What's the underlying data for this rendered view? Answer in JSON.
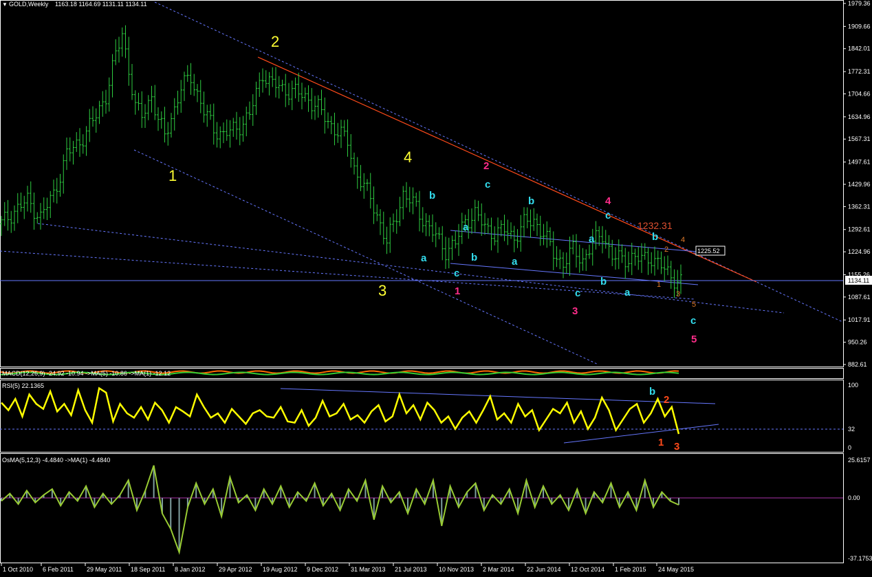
{
  "header": {
    "symbol": "GOLD,Weekly",
    "ohlc": "1163.18 1164.69 1131.11 1134.11"
  },
  "price_panel": {
    "y_ticks": [
      "1979.36",
      "1909.66",
      "1842.01",
      "1772.31",
      "1704.66",
      "1634.96",
      "1567.31",
      "1497.61",
      "1429.96",
      "1362.31",
      "1292.61",
      "1224.96",
      "1155.26",
      "1087.61",
      "1017.91",
      "950.26",
      "882.61"
    ],
    "current_price": "1134.11",
    "line_price": "1225.52",
    "annotation": "1232.31"
  },
  "macd_panel": {
    "label": "MACD(12,26,9) -24.92 -10.94 ->MA(5) -10.86 ->MA(1) -12.12"
  },
  "rsi_panel": {
    "label": "RSI(5) 22.1365",
    "y_ticks": [
      "100",
      "32",
      "0"
    ]
  },
  "osma_panel": {
    "label": "OsMA(5,12,3) -4.4840   ->MA(1) -4.4840",
    "y_ticks": [
      "25.6157",
      "0.00",
      "-37.1753"
    ]
  },
  "x_axis": {
    "labels": [
      "1 Oct 2010",
      "6 Feb 2011",
      "29 May 2011",
      "18 Sep 2011",
      "8 Jan 2012",
      "29 Apr 2012",
      "19 Aug 2012",
      "9 Dec 2012",
      "31 Mar 2013",
      "21 Jul 2013",
      "10 Nov 2013",
      "2 Mar 2014",
      "22 Jun 2014",
      "12 Oct 2014",
      "1 Feb 2015",
      "24 May 2015"
    ]
  },
  "wave_labels": {
    "major": [
      "1",
      "2",
      "3",
      "4"
    ],
    "intermediate": [
      "1",
      "2",
      "3",
      "4",
      "5"
    ],
    "minor": [
      "a",
      "b",
      "c",
      "a",
      "b",
      "c",
      "a",
      "b",
      "c",
      "a",
      "b",
      "c",
      "a",
      "b",
      "c",
      "c"
    ],
    "sub": [
      "1",
      "2",
      "3",
      "4",
      "5"
    ],
    "rsi": [
      "b",
      "2",
      "1",
      "3"
    ]
  },
  "colors": {
    "candles": "#2ecc40",
    "major": "#ffff33",
    "intermediate": "#ff2d8a",
    "minor": "#33ddee",
    "sub": "#e07a2a",
    "trend": "#ff4a1a",
    "channel": "#6677ff",
    "rsi": "#ffff00",
    "osma": "#99cc33",
    "macd_a": "#ff6a00",
    "macd_b": "#33cc33"
  },
  "chart_data": [
    {
      "type": "candlestick",
      "title": "GOLD,Weekly",
      "x_labels": [
        "1 Oct 2010",
        "6 Feb 2011",
        "29 May 2011",
        "18 Sep 2011",
        "8 Jan 2012",
        "29 Apr 2012",
        "19 Aug 2012",
        "9 Dec 2012",
        "31 Mar 2013",
        "21 Jul 2013",
        "10 Nov 2013",
        "2 Mar 2014",
        "22 Jun 2014",
        "12 Oct 2014",
        "1 Feb 2015",
        "24 May 2015"
      ],
      "ylim": [
        882.61,
        1979.36
      ],
      "close_path": [
        [
          0,
          1310
        ],
        [
          4,
          1350
        ],
        [
          8,
          1380
        ],
        [
          12,
          1330
        ],
        [
          16,
          1400
        ],
        [
          20,
          1520
        ],
        [
          24,
          1560
        ],
        [
          28,
          1620
        ],
        [
          32,
          1700
        ],
        [
          35,
          1820
        ],
        [
          37,
          1890
        ],
        [
          39,
          1780
        ],
        [
          41,
          1660
        ],
        [
          43,
          1640
        ],
        [
          46,
          1700
        ],
        [
          48,
          1620
        ],
        [
          50,
          1580
        ],
        [
          53,
          1660
        ],
        [
          55,
          1720
        ],
        [
          58,
          1760
        ],
        [
          62,
          1650
        ],
        [
          65,
          1600
        ],
        [
          68,
          1580
        ],
        [
          72,
          1600
        ],
        [
          76,
          1640
        ],
        [
          80,
          1770
        ],
        [
          82,
          1740
        ],
        [
          86,
          1720
        ],
        [
          90,
          1710
        ],
        [
          94,
          1690
        ],
        [
          97,
          1660
        ],
        [
          100,
          1620
        ],
        [
          103,
          1590
        ],
        [
          106,
          1560
        ],
        [
          108,
          1480
        ],
        [
          111,
          1420
        ],
        [
          113,
          1390
        ],
        [
          116,
          1310
        ],
        [
          118,
          1250
        ],
        [
          120,
          1310
        ],
        [
          123,
          1400
        ],
        [
          125,
          1380
        ],
        [
          127,
          1360
        ],
        [
          130,
          1310
        ],
        [
          133,
          1270
        ],
        [
          136,
          1230
        ],
        [
          139,
          1250
        ],
        [
          142,
          1320
        ],
        [
          145,
          1340
        ],
        [
          148,
          1300
        ],
        [
          151,
          1280
        ],
        [
          154,
          1290
        ],
        [
          157,
          1270
        ],
        [
          160,
          1310
        ],
        [
          163,
          1320
        ],
        [
          166,
          1280
        ],
        [
          169,
          1220
        ],
        [
          172,
          1190
        ],
        [
          175,
          1230
        ],
        [
          178,
          1200
        ],
        [
          181,
          1250
        ],
        [
          184,
          1280
        ],
        [
          187,
          1210
        ],
        [
          190,
          1200
        ],
        [
          193,
          1210
        ],
        [
          196,
          1200
        ],
        [
          199,
          1210
        ],
        [
          202,
          1180
        ],
        [
          205,
          1150
        ],
        [
          208,
          1134
        ]
      ],
      "wave_counts": {
        "primary": [
          "1",
          "2",
          "3",
          "4"
        ],
        "intermediate": [
          "1",
          "2",
          "3",
          "4",
          "5"
        ],
        "minor": [
          "a",
          "b",
          "c"
        ],
        "sub": [
          "1",
          "2",
          "3",
          "4",
          "5"
        ]
      },
      "current_price": 1134.11,
      "line_price": 1225.52,
      "marked_level": 1232.31
    },
    {
      "type": "line",
      "title": "RSI(5) 22.1365",
      "ylim": [
        0,
        100
      ],
      "levels": [
        32
      ],
      "values": [
        72,
        60,
        78,
        50,
        85,
        70,
        62,
        90,
        58,
        70,
        52,
        92,
        60,
        40,
        95,
        88,
        42,
        70,
        55,
        48,
        65,
        45,
        72,
        60,
        40,
        65,
        58,
        50,
        85,
        65,
        48,
        55,
        40,
        62,
        50,
        38,
        55,
        60,
        50,
        48,
        65,
        42,
        40,
        60,
        35,
        48,
        75,
        50,
        55,
        70,
        45,
        52,
        40,
        58,
        68,
        42,
        50,
        85,
        55,
        68,
        45,
        72,
        60,
        40,
        50,
        30,
        48,
        58,
        40,
        60,
        82,
        45,
        55,
        40,
        70,
        50,
        60,
        28,
        45,
        62,
        55,
        72,
        40,
        58,
        30,
        48,
        80,
        60,
        28,
        45,
        62,
        70,
        40,
        55,
        78,
        50,
        65,
        22
      ]
    },
    {
      "type": "bar",
      "title": "OsMA(5,12,3) -4.4840",
      "ylim": [
        -37.1753,
        25.6157
      ],
      "values": [
        -2,
        3,
        -4,
        5,
        -3,
        2,
        6,
        -5,
        4,
        -2,
        8,
        -6,
        3,
        -4,
        2,
        12,
        -8,
        5,
        22,
        -10,
        -20,
        -35,
        -6,
        10,
        -4,
        6,
        -12,
        14,
        -3,
        2,
        -8,
        6,
        -4,
        8,
        -6,
        4,
        -2,
        10,
        -5,
        3,
        -8,
        6,
        -2,
        12,
        -14,
        8,
        -3,
        4,
        -10,
        6,
        -4,
        12,
        -18,
        8,
        -6,
        4,
        10,
        -8,
        2,
        -4,
        6,
        -10,
        12,
        -6,
        8,
        -4,
        2,
        -8,
        6,
        -10,
        4,
        -3,
        10,
        -6,
        4,
        -8,
        12,
        -6,
        4,
        -2,
        -4.48
      ]
    }
  ]
}
